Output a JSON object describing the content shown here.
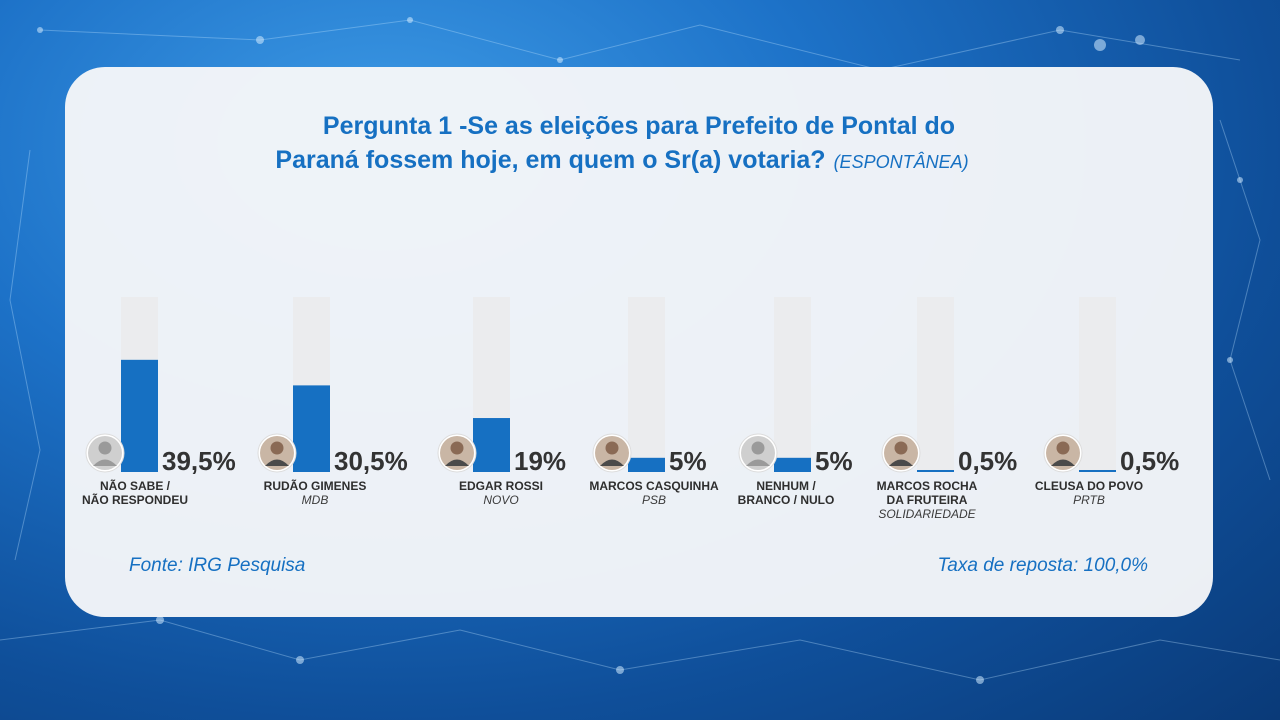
{
  "header": {
    "title_line1": "Pergunta 1 -Se as eleições para Prefeito de Pontal do",
    "title_line2": "Paraná fossem hoje, em quem o Sr(a) votaria?",
    "title_tag": "(ESPONTÂNEA)"
  },
  "footer": {
    "source": "Fonte: IRG Pesquisa",
    "response_rate": "Taxa de reposta: 100,0%"
  },
  "colors": {
    "bar": "#1670c2",
    "track": "#ebecee",
    "title": "#1670c2"
  },
  "chart_data": {
    "type": "bar",
    "title": "Pergunta 1 -Se as eleições para Prefeito de Pontal do Paraná fossem hoje, em quem o Sr(a) votaria? (ESPONTÂNEA)",
    "ylim": [
      0,
      100
    ],
    "grid": false,
    "categories": [
      "NÃO SABE / NÃO RESPONDEU",
      "RUDÃO GIMENES",
      "EDGAR ROSSI",
      "MARCOS CASQUINHA",
      "NENHUM / BRANCO / NULO",
      "MARCOS ROCHA DA FRUTEIRA",
      "CLEUSA DO POVO"
    ],
    "values": [
      39.5,
      30.5,
      19,
      5,
      5,
      0.5,
      0.5
    ],
    "value_labels": [
      "39,5%",
      "30,5%",
      "19%",
      "5%",
      "5%",
      "0,5%",
      "0,5%"
    ],
    "candidates": [
      {
        "name_lines": [
          "NÃO SABE /",
          "NÃO RESPONDEU"
        ],
        "party": "",
        "avatar": "generic-person-icon",
        "value": 39.5,
        "label": "39,5%"
      },
      {
        "name_lines": [
          "RUDÃO GIMENES"
        ],
        "party": "MDB",
        "avatar": "candidate-photo",
        "value": 30.5,
        "label": "30,5%"
      },
      {
        "name_lines": [
          "EDGAR ROSSI"
        ],
        "party": "NOVO",
        "avatar": "candidate-photo",
        "value": 19,
        "label": "19%"
      },
      {
        "name_lines": [
          "MARCOS CASQUINHA"
        ],
        "party": "PSB",
        "avatar": "candidate-photo",
        "value": 5,
        "label": "5%"
      },
      {
        "name_lines": [
          "NENHUM /",
          "BRANCO / NULO"
        ],
        "party": "",
        "avatar": "generic-person-icon",
        "value": 5,
        "label": "5%"
      },
      {
        "name_lines": [
          "MARCOS ROCHA",
          "DA FRUTEIRA"
        ],
        "party": "SOLIDARIEDADE",
        "avatar": "candidate-photo",
        "value": 0.5,
        "label": "0,5%"
      },
      {
        "name_lines": [
          "CLEUSA DO POVO"
        ],
        "party": "PRTB",
        "avatar": "candidate-photo",
        "value": 0.5,
        "label": "0,5%"
      }
    ]
  }
}
